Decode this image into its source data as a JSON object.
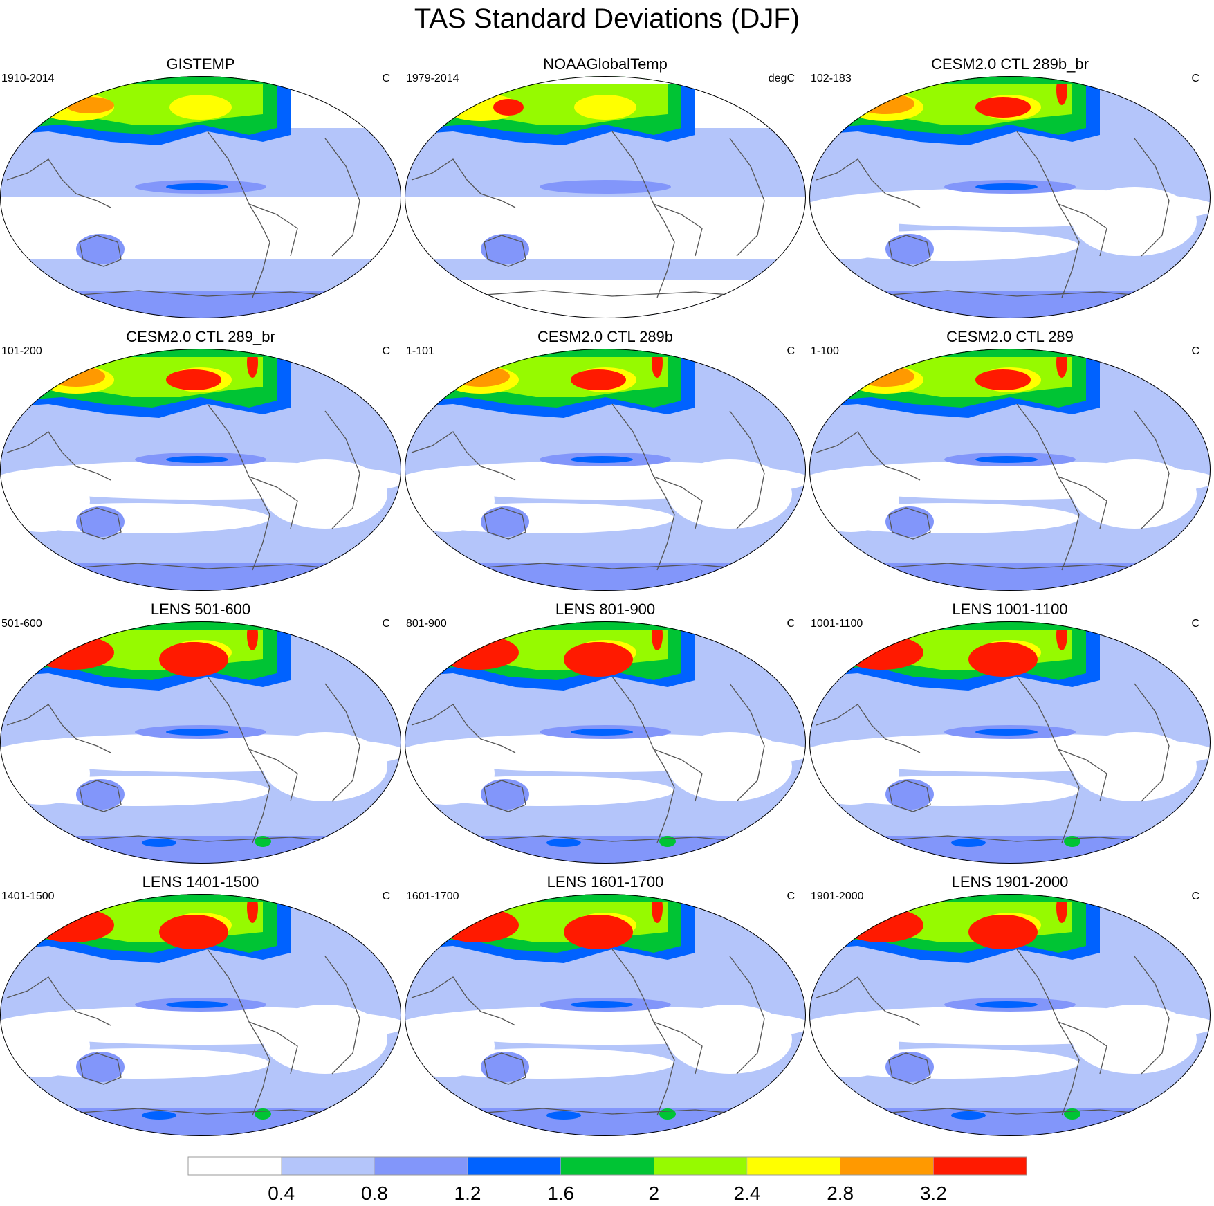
{
  "title": "TAS Standard Deviations (DJF)",
  "panels": [
    {
      "title": "GISTEMP",
      "left_label": "1910-2014",
      "right_label": "C",
      "style": "obs1"
    },
    {
      "title": "NOAAGlobalTemp",
      "left_label": "1979-2014",
      "right_label": "degC",
      "style": "obs2"
    },
    {
      "title": "CESM2.0 CTL 289b_br",
      "left_label": "102-183",
      "right_label": "C",
      "style": "cesm"
    },
    {
      "title": "CESM2.0 CTL 289_br",
      "left_label": "101-200",
      "right_label": "C",
      "style": "cesm"
    },
    {
      "title": "CESM2.0 CTL 289b",
      "left_label": "1-101",
      "right_label": "C",
      "style": "cesm"
    },
    {
      "title": "CESM2.0 CTL 289",
      "left_label": "1-100",
      "right_label": "C",
      "style": "cesm"
    },
    {
      "title": "LENS 501-600",
      "left_label": "501-600",
      "right_label": "C",
      "style": "lens"
    },
    {
      "title": "LENS 801-900",
      "left_label": "801-900",
      "right_label": "C",
      "style": "lens"
    },
    {
      "title": "LENS 1001-1100",
      "left_label": "1001-1100",
      "right_label": "C",
      "style": "lens"
    },
    {
      "title": "LENS 1401-1500",
      "left_label": "1401-1500",
      "right_label": "C",
      "style": "lens"
    },
    {
      "title": "LENS 1601-1700",
      "left_label": "1601-1700",
      "right_label": "C",
      "style": "lens"
    },
    {
      "title": "LENS 1901-2000",
      "left_label": "1901-2000",
      "right_label": "C",
      "style": "lens"
    }
  ],
  "colorbar": {
    "levels": [
      "0.4",
      "0.8",
      "1.2",
      "1.6",
      "2",
      "2.4",
      "2.8",
      "3.2"
    ],
    "colors": [
      "#ffffff",
      "#b4c5fa",
      "#8296fa",
      "#0062ff",
      "#00c434",
      "#96fa00",
      "#ffff00",
      "#ff9900",
      "#ff1a00"
    ]
  }
}
